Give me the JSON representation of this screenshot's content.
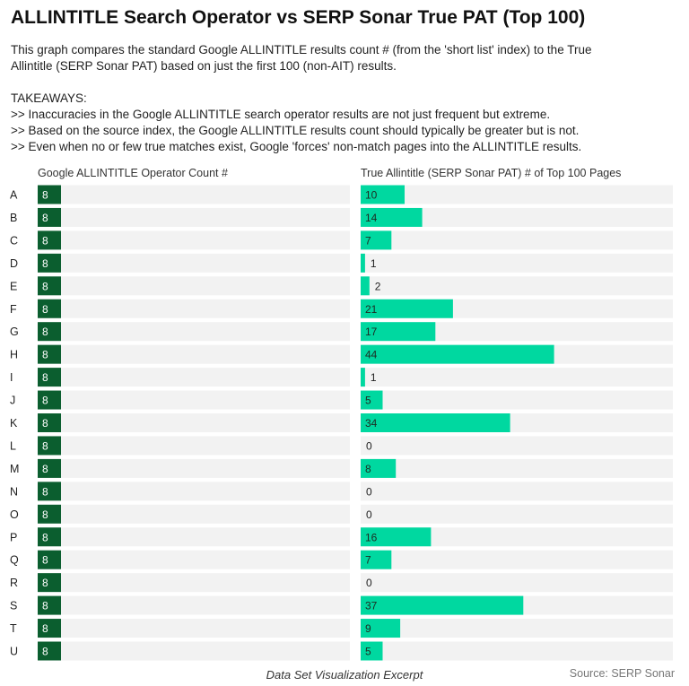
{
  "title": "ALLINTITLE Search Operator vs  SERP Sonar True PAT (Top 100)",
  "description": [
    "This graph compares the standard Google ALLINTITLE results count # (from the 'short list' index) to the True",
    "Allintitle (SERP Sonar PAT) based on just the first 100 (non-AIT) results."
  ],
  "takeaways_heading": "TAKEAWAYS:",
  "takeaways": [
    ">> Inaccuracies in the Google ALLINTITLE search operator results are not just frequent but extreme.",
    ">> Based on the source index, the Google ALLINTITLE results count should typically be greater but is not.",
    ">> Even when no or few true matches exist, Google 'forces' non-match pages into the ALLINTITLE results."
  ],
  "footer_center": "Data Set Visualization Excerpt",
  "footer_right": "Source: SERP Sonar",
  "chart_data": {
    "type": "bar",
    "orientation": "horizontal",
    "categories": [
      "A",
      "B",
      "C",
      "D",
      "E",
      "F",
      "G",
      "H",
      "I",
      "J",
      "K",
      "L",
      "M",
      "N",
      "O",
      "P",
      "Q",
      "R",
      "S",
      "T",
      "U"
    ],
    "series": [
      {
        "name": "Google ALLINTITLE Operator Count #",
        "color": "#0b5e2f",
        "values": [
          8,
          8,
          8,
          8,
          8,
          8,
          8,
          8,
          8,
          8,
          8,
          8,
          8,
          8,
          8,
          8,
          8,
          8,
          8,
          8,
          8
        ]
      },
      {
        "name": "True Allintitle (SERP Sonar PAT) # of Top 100 Pages",
        "color": "#00d8a0",
        "values": [
          10,
          14,
          7,
          1,
          2,
          21,
          17,
          44,
          1,
          5,
          34,
          0,
          8,
          0,
          0,
          16,
          7,
          0,
          37,
          9,
          5
        ]
      }
    ],
    "row_background": "#f2f2f2",
    "grid": false,
    "legend": "none"
  }
}
